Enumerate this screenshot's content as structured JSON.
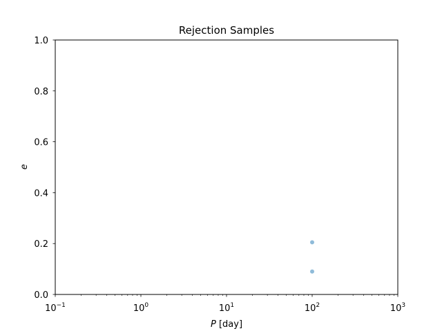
{
  "chart_data": {
    "type": "scatter",
    "title": "Rejection Samples",
    "xlabel_var": "P",
    "xlabel_unit": " [day]",
    "ylabel": "e",
    "xscale": "log",
    "xlim": [
      0.1,
      1000
    ],
    "ylim": [
      0.0,
      1.0
    ],
    "grid": false,
    "x_ticks": [
      {
        "value": 0.1,
        "base": "10",
        "exp": "−1"
      },
      {
        "value": 1,
        "base": "10",
        "exp": "0"
      },
      {
        "value": 10,
        "base": "10",
        "exp": "1"
      },
      {
        "value": 100,
        "base": "10",
        "exp": "2"
      },
      {
        "value": 1000,
        "base": "10",
        "exp": "3"
      }
    ],
    "y_ticks": [
      {
        "value": 0.0,
        "label": "0.0"
      },
      {
        "value": 0.2,
        "label": "0.2"
      },
      {
        "value": 0.4,
        "label": "0.4"
      },
      {
        "value": 0.6,
        "label": "0.6"
      },
      {
        "value": 0.8,
        "label": "0.8"
      },
      {
        "value": 1.0,
        "label": "1.0"
      }
    ],
    "points": [
      {
        "x": 100,
        "y": 0.205
      },
      {
        "x": 100,
        "y": 0.09
      }
    ],
    "marker_color": "#1f77b4",
    "marker_alpha": 0.5
  }
}
